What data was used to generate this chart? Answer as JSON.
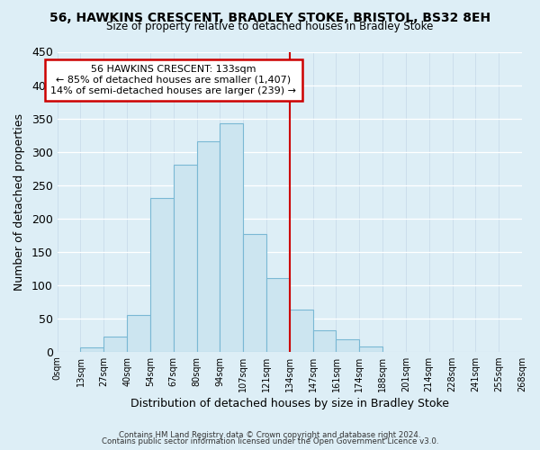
{
  "title1": "56, HAWKINS CRESCENT, BRADLEY STOKE, BRISTOL, BS32 8EH",
  "title2": "Size of property relative to detached houses in Bradley Stoke",
  "xlabel": "Distribution of detached houses by size in Bradley Stoke",
  "ylabel": "Number of detached properties",
  "footer1": "Contains HM Land Registry data © Crown copyright and database right 2024.",
  "footer2": "Contains public sector information licensed under the Open Government Licence v3.0.",
  "bin_labels": [
    "0sqm",
    "13sqm",
    "27sqm",
    "40sqm",
    "54sqm",
    "67sqm",
    "80sqm",
    "94sqm",
    "107sqm",
    "121sqm",
    "134sqm",
    "147sqm",
    "161sqm",
    "174sqm",
    "188sqm",
    "201sqm",
    "214sqm",
    "228sqm",
    "241sqm",
    "255sqm",
    "268sqm"
  ],
  "bar_heights": [
    0,
    7,
    22,
    55,
    230,
    280,
    315,
    342,
    177,
    110,
    63,
    32,
    19,
    8,
    0,
    0,
    0,
    0,
    0,
    0
  ],
  "bar_color": "#cce5f0",
  "bar_edge_color": "#7ab8d4",
  "vertical_line_x": 10,
  "annotation_title": "56 HAWKINS CRESCENT: 133sqm",
  "annotation_line1": "← 85% of detached houses are smaller (1,407)",
  "annotation_line2": "14% of semi-detached houses are larger (239) →",
  "annotation_box_color": "#ffffff",
  "annotation_box_edge": "#cc0000",
  "vline_color": "#cc0000",
  "ylim": [
    0,
    450
  ],
  "background_color": "#ddeef6",
  "grid_color": "#c5d8e8"
}
